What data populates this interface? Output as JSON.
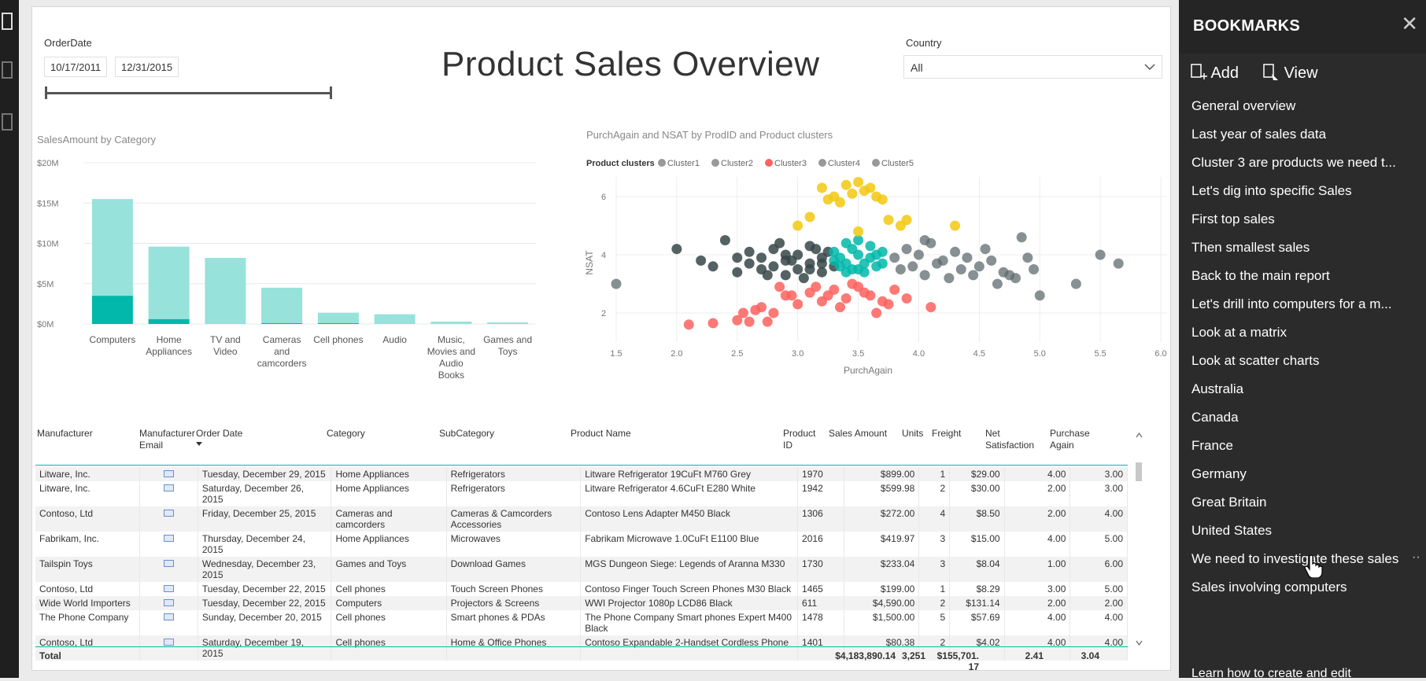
{
  "report": {
    "title": "Product Sales Overview",
    "order_date_label": "OrderDate",
    "date_start": "10/17/2011",
    "date_end": "12/31/2015",
    "country_label": "Country",
    "country_value": "All"
  },
  "bar_chart_title": "SalesAmount by Category",
  "scatter_title": "PurchAgain and NSAT by ProdID and Product clusters",
  "scatter_legend_title": "Product clusters",
  "colors": {
    "bar_light": "#97e2db",
    "bar_dark": "#01b8aa",
    "cluster1": "#374649",
    "cluster2": "#01b8aa",
    "cluster3": "#fd625e",
    "cluster4": "#5f6b6d",
    "cluster5": "#f2c80f",
    "legend_gray": "#999999"
  },
  "chart_data": [
    {
      "type": "bar",
      "title": "SalesAmount by Category",
      "categories": [
        "Computers",
        "Home Appliances",
        "TV and Video",
        "Cameras and camcorders",
        "Cell phones",
        "Audio",
        "Music, Movies and Audio Books",
        "Games and Toys"
      ],
      "category_lines": [
        [
          "Computers"
        ],
        [
          "Home",
          "Appliances"
        ],
        [
          "TV and",
          "Video"
        ],
        [
          "Cameras",
          "and",
          "camcorders"
        ],
        [
          "Cell phones"
        ],
        [
          "Audio"
        ],
        [
          "Music,",
          "Movies and",
          "Audio",
          "Books"
        ],
        [
          "Games and",
          "Toys"
        ]
      ],
      "series": [
        {
          "values": [
            3.5,
            0.6,
            0.0,
            0.1,
            0.1,
            0.0,
            0.0,
            0.0
          ]
        },
        {
          "values": [
            12.0,
            9.0,
            8.2,
            4.4,
            1.3,
            1.2,
            0.3,
            0.2
          ]
        }
      ],
      "ylim": [
        0,
        20
      ],
      "yticks": [
        0,
        5,
        10,
        15,
        20
      ],
      "ytick_labels": [
        "$0M",
        "$5M",
        "$10M",
        "$15M",
        "$20M"
      ],
      "grid": true
    },
    {
      "type": "scatter",
      "title": "PurchAgain and NSAT by ProdID and Product clusters",
      "xlabel": "PurchAgain",
      "ylabel": "NSAT",
      "xlim": [
        1.5,
        6.0
      ],
      "ylim": [
        1.0,
        7.0
      ],
      "xticks": [
        1.5,
        2.0,
        2.5,
        3.0,
        3.5,
        4.0,
        4.5,
        5.0,
        5.5,
        6.0
      ],
      "xtick_labels": [
        "1.5",
        "2.0",
        "2.5",
        "3.0",
        "3.5",
        "4.0",
        "4.5",
        "5.0",
        "5.5",
        "6.0"
      ],
      "yticks": [
        2,
        4,
        6
      ],
      "ytick_labels": [
        "2",
        "4",
        "6"
      ],
      "legend_title": "Product clusters",
      "series": [
        {
          "name": "Cluster1",
          "x": [
            2.0,
            2.2,
            2.3,
            2.4,
            2.5,
            2.5,
            2.6,
            2.6,
            2.7,
            2.7,
            2.8,
            2.8,
            2.9,
            2.9,
            3.0,
            3.0,
            3.1,
            3.1,
            3.2,
            3.2,
            3.25,
            3.3,
            2.85,
            3.05,
            2.95,
            3.15,
            2.75,
            3.2,
            3.1,
            2.9
          ],
          "y": [
            4.2,
            3.8,
            3.6,
            4.5,
            3.9,
            3.4,
            4.1,
            3.7,
            3.9,
            3.5,
            4.2,
            3.6,
            3.8,
            3.3,
            4.0,
            3.5,
            4.3,
            3.7,
            3.9,
            3.4,
            4.1,
            3.6,
            4.4,
            3.2,
            3.8,
            4.2,
            3.3,
            3.7,
            3.5,
            4.0
          ]
        },
        {
          "name": "Cluster2",
          "x": [
            3.3,
            3.35,
            3.4,
            3.45,
            3.5,
            3.55,
            3.6,
            3.65,
            3.7,
            3.3,
            3.4,
            3.5,
            3.6,
            3.7,
            3.45,
            3.55,
            3.35,
            3.65,
            3.5,
            3.4
          ],
          "y": [
            4.1,
            3.6,
            4.4,
            3.5,
            4.0,
            3.7,
            4.3,
            3.6,
            4.1,
            3.8,
            3.4,
            3.5,
            3.9,
            3.7,
            4.2,
            3.4,
            3.9,
            4.0,
            4.5,
            3.7
          ]
        },
        {
          "name": "Cluster3",
          "x": [
            2.1,
            2.3,
            2.5,
            2.6,
            2.7,
            2.8,
            2.9,
            3.0,
            3.1,
            3.2,
            3.3,
            3.4,
            3.5,
            3.6,
            3.7,
            3.8,
            3.9,
            2.55,
            2.75,
            2.95,
            3.15,
            3.35,
            3.55,
            3.75,
            4.1,
            2.65,
            3.45,
            3.25,
            2.85,
            3.65
          ],
          "y": [
            1.6,
            1.65,
            1.75,
            1.7,
            2.2,
            2.0,
            2.6,
            2.3,
            2.7,
            2.4,
            2.8,
            2.5,
            2.9,
            2.6,
            2.4,
            2.8,
            2.5,
            2.0,
            1.7,
            2.6,
            2.9,
            2.2,
            2.7,
            2.3,
            2.2,
            2.1,
            3.0,
            2.6,
            2.9,
            2.0
          ]
        },
        {
          "name": "Cluster4",
          "x": [
            3.8,
            3.85,
            3.9,
            3.95,
            4.0,
            4.05,
            4.1,
            4.15,
            4.2,
            4.25,
            4.3,
            4.35,
            4.4,
            4.45,
            4.5,
            4.6,
            4.7,
            4.8,
            4.85,
            4.9,
            5.0,
            5.3,
            5.5,
            5.65,
            4.65,
            4.75,
            4.55,
            4.95,
            1.5,
            4.05
          ],
          "y": [
            3.9,
            3.5,
            4.2,
            3.6,
            4.0,
            3.3,
            4.4,
            3.7,
            3.8,
            3.2,
            4.1,
            3.5,
            3.9,
            3.3,
            3.6,
            3.8,
            3.4,
            3.2,
            4.6,
            3.9,
            2.6,
            3.0,
            4.0,
            3.7,
            3.0,
            3.3,
            4.2,
            3.5,
            3.0,
            4.5
          ]
        },
        {
          "name": "Cluster5",
          "x": [
            3.0,
            3.2,
            3.25,
            3.3,
            3.4,
            3.45,
            3.5,
            3.55,
            3.6,
            3.65,
            3.7,
            3.75,
            3.1,
            3.85,
            4.3,
            3.5,
            3.9,
            3.35
          ],
          "y": [
            5.0,
            6.3,
            5.9,
            6.0,
            6.4,
            6.1,
            6.5,
            6.2,
            6.3,
            6.0,
            5.9,
            5.2,
            5.3,
            5.0,
            5.0,
            4.8,
            5.2,
            5.8
          ]
        }
      ],
      "grid": true,
      "legend_position": "top-left"
    }
  ],
  "table": {
    "headers": [
      [
        "Manufacturer"
      ],
      [
        "Manufacturer",
        "Email"
      ],
      [
        "Order Date"
      ],
      [
        "Category"
      ],
      [
        "SubCategory"
      ],
      [
        "Product Name"
      ],
      [
        "Product",
        "ID"
      ],
      [
        "Sales Amount"
      ],
      [
        "Units"
      ],
      [
        "Freight"
      ],
      [
        "Net",
        "Satisfaction"
      ],
      [
        "Purchase",
        "Again"
      ]
    ],
    "rows": [
      {
        "manufacturer": "Litware, Inc.",
        "order_date": "Tuesday, December 29, 2015",
        "category": "Home Appliances",
        "subcategory": "Refrigerators",
        "product_name": "Litware Refrigerator 19CuFt M760 Grey",
        "product_id": "1970",
        "sales_amount": "$899.00",
        "units": "1",
        "freight": "$29.00",
        "net_satisfaction": "4.00",
        "purchase_again": "3.00"
      },
      {
        "manufacturer": "Litware, Inc.",
        "order_date": "Saturday, December 26, 2015",
        "category": "Home Appliances",
        "subcategory": "Refrigerators",
        "product_name": "Litware Refrigerator 4.6CuFt E280 White",
        "product_id": "1942",
        "sales_amount": "$599.98",
        "units": "2",
        "freight": "$30.00",
        "net_satisfaction": "2.00",
        "purchase_again": "3.00"
      },
      {
        "manufacturer": "Contoso, Ltd",
        "order_date": "Friday, December 25, 2015",
        "category": "Cameras and camcorders",
        "subcategory": "Cameras & Camcorders Accessories",
        "product_name": "Contoso Lens Adapter M450 Black",
        "product_id": "1306",
        "sales_amount": "$272.00",
        "units": "4",
        "freight": "$8.50",
        "net_satisfaction": "2.00",
        "purchase_again": "4.00"
      },
      {
        "manufacturer": "Fabrikam, Inc.",
        "order_date": "Thursday, December 24, 2015",
        "category": "Home Appliances",
        "subcategory": "Microwaves",
        "product_name": "Fabrikam Microwave 1.0CuFt E1100 Blue",
        "product_id": "2016",
        "sales_amount": "$419.97",
        "units": "3",
        "freight": "$15.00",
        "net_satisfaction": "4.00",
        "purchase_again": "5.00"
      },
      {
        "manufacturer": "Tailspin Toys",
        "order_date": "Wednesday, December 23, 2015",
        "category": "Games and Toys",
        "subcategory": "Download Games",
        "product_name": "MGS Dungeon Siege: Legends of Aranna M330",
        "product_id": "1730",
        "sales_amount": "$233.04",
        "units": "3",
        "freight": "$8.04",
        "net_satisfaction": "1.00",
        "purchase_again": "6.00"
      },
      {
        "manufacturer": "Contoso, Ltd",
        "order_date": "Tuesday, December 22, 2015",
        "category": "Cell phones",
        "subcategory": "Touch Screen Phones",
        "product_name": "Contoso Finger Touch Screen Phones M30 Black",
        "product_id": "1465",
        "sales_amount": "$199.00",
        "units": "1",
        "freight": "$8.29",
        "net_satisfaction": "3.00",
        "purchase_again": "5.00"
      },
      {
        "manufacturer": "Wide World Importers",
        "order_date": "Tuesday, December 22, 2015",
        "category": "Computers",
        "subcategory": "Projectors & Screens",
        "product_name": "WWI Projector 1080p LCD86 Black",
        "product_id": "611",
        "sales_amount": "$4,590.00",
        "units": "2",
        "freight": "$131.14",
        "net_satisfaction": "2.00",
        "purchase_again": "2.00"
      },
      {
        "manufacturer": "The Phone Company",
        "order_date": "Sunday, December 20, 2015",
        "category": "Cell phones",
        "subcategory": "Smart phones & PDAs",
        "product_name": "The Phone Company Smart phones Expert M400 Black",
        "product_id": "1478",
        "sales_amount": "$1,500.00",
        "units": "5",
        "freight": "$57.69",
        "net_satisfaction": "4.00",
        "purchase_again": "4.00"
      },
      {
        "manufacturer": "Contoso, Ltd",
        "order_date": "Saturday, December 19, 2015",
        "category": "Cell phones",
        "subcategory": "Home & Office Phones",
        "product_name": "Contoso Expandable 2-Handset Cordless Phone",
        "product_id": "1401",
        "sales_amount": "$80.38",
        "units": "2",
        "freight": "$4.02",
        "net_satisfaction": "4.00",
        "purchase_again": "4.00"
      }
    ],
    "total": {
      "label": "Total",
      "sales_amount": "$4,183,890.14",
      "units": "3,251",
      "freight_line1": "$155,701.",
      "freight_line2": "17",
      "net_satisfaction": "2.41",
      "purchase_again": "3.04"
    }
  },
  "bookmarks_panel": {
    "title": "BOOKMARKS",
    "add_label": "Add",
    "view_label": "View",
    "items": [
      "General overview",
      "Last year of sales data",
      "Cluster 3 are products we need t...",
      "Let's dig into specific Sales",
      "First top sales",
      "Then smallest sales",
      "Back to the main report",
      "Let's drill into computers for a m...",
      "Look at a matrix",
      "Look at scatter charts",
      "Australia",
      "Canada",
      "France",
      "Germany",
      "Great Britain",
      "United States",
      "We need to investigate these sales",
      "Sales involving computers"
    ],
    "active_index": 16,
    "more_label": "··",
    "footer": "Learn how to create and edit"
  }
}
